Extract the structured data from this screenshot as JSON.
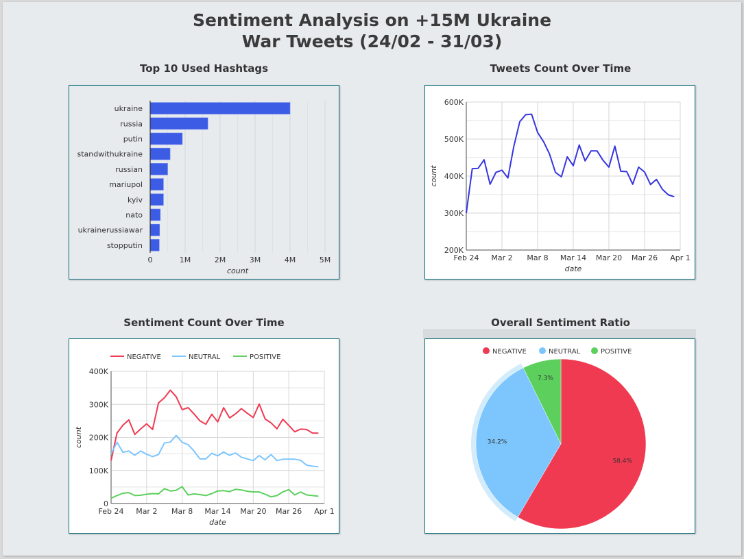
{
  "dashboard": {
    "title_line1": "Sentiment Analysis on +15M Ukraine",
    "title_line2": "War Tweets (24/02 - 31/03)"
  },
  "colors": {
    "bar": "#3d5ce5",
    "tweet_line": "#3535e0",
    "negative": "#ef3a51",
    "neutral": "#7cc6fd",
    "positive": "#5ccf5c",
    "panel_border": "#0e6e7a"
  },
  "chart_data": [
    {
      "id": "hashtags",
      "type": "bar",
      "orientation": "horizontal",
      "title": "Top 10 Used Hashtags",
      "xlabel": "count",
      "ylabel": "",
      "categories": [
        "ukraine",
        "russia",
        "putin",
        "standwithukraine",
        "russian",
        "mariupol",
        "kyiv",
        "nato",
        "ukrainerussiawar",
        "stopputin"
      ],
      "values": [
        4000000,
        1650000,
        920000,
        570000,
        500000,
        380000,
        380000,
        290000,
        270000,
        260000
      ],
      "xlim": [
        0,
        5000000
      ],
      "xticks": [
        0,
        1000000,
        2000000,
        3000000,
        4000000,
        5000000
      ],
      "xtick_labels": [
        "0",
        "1M",
        "2M",
        "3M",
        "4M",
        "5M"
      ],
      "grid": true
    },
    {
      "id": "tweets",
      "type": "line",
      "title": "Tweets Count Over Time",
      "xlabel": "date",
      "ylabel": "count",
      "x_start": "Feb 24",
      "x_end": "Mar 31",
      "xtick_labels": [
        "Feb 24",
        "Mar 2",
        "Mar 8",
        "Mar 14",
        "Mar 20",
        "Mar 26",
        "Apr 1"
      ],
      "xtick_day_index": [
        0,
        6,
        12,
        18,
        24,
        30,
        36
      ],
      "ylim": [
        200000,
        600000
      ],
      "yticks": [
        200000,
        300000,
        400000,
        500000,
        600000
      ],
      "ytick_labels": [
        "200K",
        "300K",
        "400K",
        "500K",
        "600K"
      ],
      "grid": true,
      "series": [
        {
          "name": "count",
          "values": [
            300000,
            420000,
            421000,
            444000,
            378000,
            410000,
            416000,
            395000,
            480000,
            547000,
            566000,
            567000,
            518000,
            493000,
            460000,
            410000,
            398000,
            452000,
            428000,
            484000,
            441000,
            468000,
            468000,
            443000,
            424000,
            481000,
            413000,
            412000,
            378000,
            424000,
            411000,
            377000,
            391000,
            364000,
            349000,
            344000
          ]
        }
      ]
    },
    {
      "id": "sentiment",
      "type": "line",
      "title": "Sentiment Count Over Time",
      "xlabel": "date",
      "ylabel": "count",
      "legend": "top",
      "xtick_labels": [
        "Feb 24",
        "Mar 2",
        "Mar 8",
        "Mar 14",
        "Mar 20",
        "Mar 26",
        "Apr 1"
      ],
      "xtick_day_index": [
        0,
        6,
        12,
        18,
        24,
        30,
        36
      ],
      "ylim": [
        0,
        400000
      ],
      "yticks": [
        0,
        100000,
        200000,
        300000,
        400000
      ],
      "ytick_labels": [
        "0",
        "100K",
        "200K",
        "300K",
        "400K"
      ],
      "grid": true,
      "series": [
        {
          "name": "NEGATIVE",
          "values": [
            130000,
            213000,
            237000,
            253000,
            209000,
            226000,
            241000,
            224000,
            304000,
            320000,
            343000,
            323000,
            284000,
            290000,
            271000,
            250000,
            240000,
            270000,
            247000,
            290000,
            259000,
            271000,
            287000,
            273000,
            260000,
            301000,
            256000,
            244000,
            226000,
            255000,
            236000,
            217000,
            225000,
            224000,
            213000,
            213000
          ]
        },
        {
          "name": "NEUTRAL",
          "values": [
            150000,
            185000,
            155000,
            159000,
            146000,
            159000,
            149000,
            142000,
            148000,
            183000,
            186000,
            206000,
            185000,
            178000,
            159000,
            135000,
            135000,
            152000,
            144000,
            156000,
            146000,
            153000,
            140000,
            135000,
            130000,
            145000,
            132000,
            148000,
            130000,
            134000,
            134000,
            134000,
            131000,
            116000,
            113000,
            111000
          ]
        },
        {
          "name": "POSITIVE",
          "values": [
            16000,
            24000,
            31000,
            33000,
            24000,
            25000,
            28000,
            30000,
            29000,
            45000,
            38000,
            40000,
            51000,
            26000,
            29000,
            27000,
            24000,
            30000,
            38000,
            39000,
            36000,
            43000,
            41000,
            37000,
            35000,
            35000,
            28000,
            20000,
            24000,
            35000,
            42000,
            26000,
            35000,
            26000,
            24000,
            22000
          ]
        }
      ]
    },
    {
      "id": "ratio",
      "type": "pie",
      "title": "Overall Sentiment Ratio",
      "legend": "top",
      "labels": [
        "NEGATIVE",
        "NEUTRAL",
        "POSITIVE"
      ],
      "values": [
        58.4,
        34.2,
        7.3
      ],
      "value_labels": [
        "58.4%",
        "34.2%",
        "7.3%"
      ],
      "highlighted": "NEUTRAL"
    }
  ]
}
